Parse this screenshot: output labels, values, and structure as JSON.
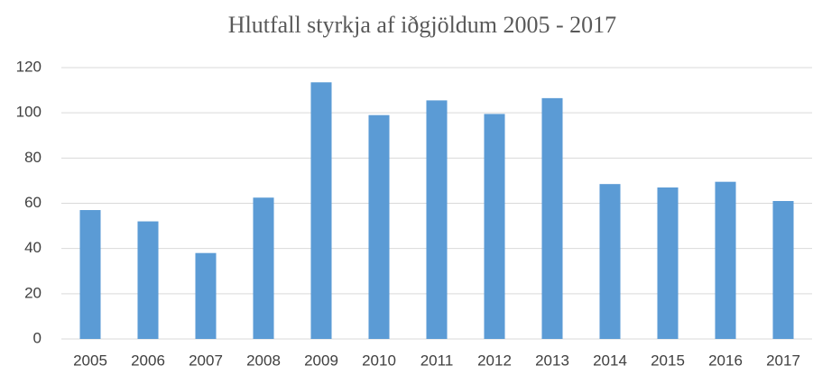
{
  "chart_data": {
    "type": "bar",
    "title": "Hlutfall styrkja af iðgjöldum 2005 - 2017",
    "categories": [
      "2005",
      "2006",
      "2007",
      "2008",
      "2009",
      "2010",
      "2011",
      "2012",
      "2013",
      "2014",
      "2015",
      "2016",
      "2017"
    ],
    "values": [
      57,
      52,
      38,
      62.5,
      113.5,
      99,
      105.5,
      99.5,
      106.5,
      68.5,
      67,
      69.5,
      61
    ],
    "color": "#5b9bd5",
    "ylim": [
      0,
      120
    ],
    "yticks": [
      0,
      20,
      40,
      60,
      80,
      100,
      120
    ],
    "grid": true
  }
}
